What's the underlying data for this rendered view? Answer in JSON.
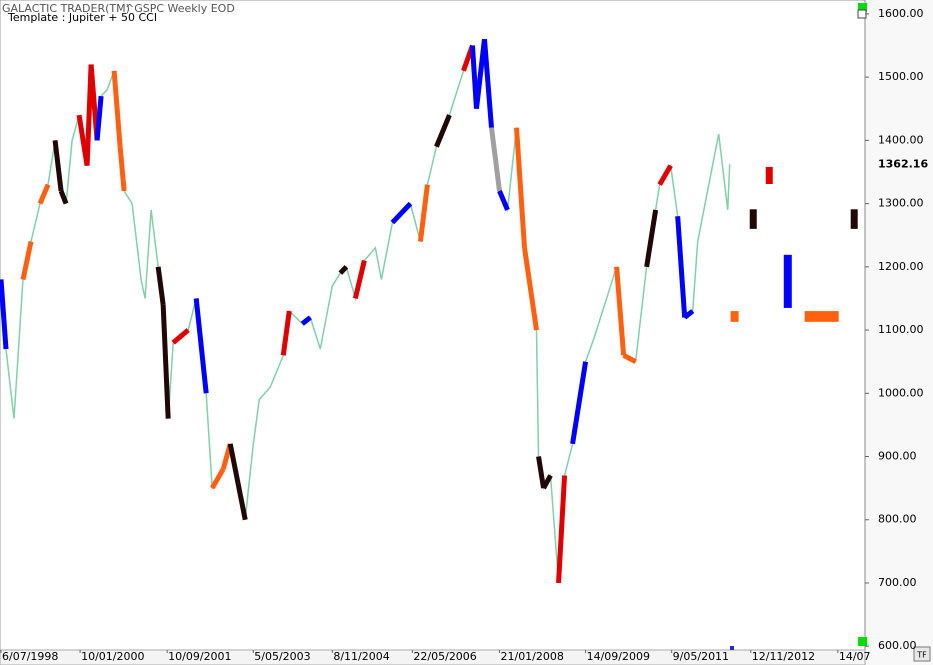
{
  "chart_data": {
    "type": "line",
    "app_title": "GALACTIC TRADER(TM)",
    "symbol": "^GSPC Weekly EOD",
    "template": "Template : Jupiter + 50 CCI",
    "button": "TF",
    "color": "#80d0a8",
    "x": [
      "6/07/1998",
      "10/08/1998",
      "5/10/1998",
      "7/12/1998",
      "1/02/1999",
      "5/04/1999",
      "31/05/1999",
      "19/07/1999",
      "30/08/1999",
      "4/10/1999",
      "15/11/1999",
      "3/01/2000",
      "28/02/2000",
      "27/03/2000",
      "8/05/2000",
      "5/06/2000",
      "17/07/2000",
      "4/09/2000",
      "16/10/2000",
      "13/11/2000",
      "8/01/2001",
      "12/03/2001",
      "9/04/2001",
      "21/05/2001",
      "9/07/2001",
      "13/08/2001",
      "17/09/2001",
      "22/10/2001",
      "4/02/2002",
      "1/04/2002",
      "10/06/2002",
      "22/07/2002",
      "7/10/2002",
      "25/11/2002",
      "10/03/2003",
      "5/05/2003",
      "16/06/2003",
      "1/09/2003",
      "1/12/2003",
      "12/01/2004",
      "12/04/2004",
      "7/06/2004",
      "16/08/2004",
      "8/11/2004",
      "3/01/2005",
      "14/02/2005",
      "18/04/2005",
      "20/06/2005",
      "5/09/2005",
      "17/10/2005",
      "2/01/2006",
      "8/05/2006",
      "17/07/2006",
      "4/09/2006",
      "6/11/2006",
      "5/02/2007",
      "14/05/2007",
      "16/07/2007",
      "13/08/2007",
      "8/10/2007",
      "26/11/2007",
      "21/01/2008",
      "17/03/2008",
      "19/05/2008",
      "14/07/2008",
      "6/10/2008",
      "20/10/2008",
      "24/11/2008",
      "12/01/2009",
      "9/03/2009",
      "20/04/2009",
      "15/06/2009",
      "14/09/2009",
      "16/11/2009",
      "19/04/2010",
      "7/06/2010",
      "30/08/2010",
      "15/11/2010",
      "17/01/2011",
      "14/02/2011",
      "2/05/2011",
      "20/06/2011",
      "8/08/2011",
      "3/10/2011",
      "7/11/2011",
      "2/04/2012",
      "4/06/2012",
      "18/06/2012"
    ],
    "values": [
      1180,
      1070,
      960,
      1180,
      1240,
      1300,
      1330,
      1400,
      1320,
      1300,
      1400,
      1440,
      1360,
      1520,
      1400,
      1470,
      1480,
      1510,
      1390,
      1320,
      1300,
      1180,
      1150,
      1290,
      1200,
      1140,
      960,
      1080,
      1100,
      1150,
      1000,
      850,
      880,
      920,
      800,
      920,
      990,
      1010,
      1060,
      1130,
      1110,
      1120,
      1070,
      1170,
      1190,
      1200,
      1150,
      1210,
      1230,
      1180,
      1270,
      1300,
      1240,
      1330,
      1390,
      1440,
      1510,
      1550,
      1450,
      1560,
      1420,
      1320,
      1290,
      1420,
      1230,
      1100,
      900,
      850,
      870,
      700,
      870,
      920,
      1050,
      1090,
      1200,
      1060,
      1050,
      1200,
      1290,
      1330,
      1360,
      1280,
      1120,
      1130,
      1240,
      1410,
      1290,
      1362.16
    ],
    "point_colors": [
      "#0000ff",
      "#0000ff",
      "#80d0a8",
      "#80d0a8",
      "#ff6010",
      "#80d0a8",
      "#ff6010",
      "#80d0a8",
      "#200808",
      "#200808",
      "#80d0a8",
      "#80d0a8",
      "#e00000",
      "#e00000",
      "#e00000",
      "#0000ff",
      "#80d0a8",
      "#80d0a8",
      "#ff6010",
      "#ff6010",
      "#80d0a8",
      "#80d0a8",
      "#80d0a8",
      "#80d0a8",
      "#80d0a8",
      "#200808",
      "#200808",
      "#80d0a8",
      "#e00000",
      "#80d0a8",
      "#0000ff",
      "#80d0a8",
      "#ff6010",
      "#ff6010",
      "#200808",
      "#80d0a8",
      "#80d0a8",
      "#80d0a8",
      "#80d0a8",
      "#e00000",
      "#80d0a8",
      "#0000ff",
      "#80d0a8",
      "#80d0a8",
      "#80d0a8",
      "#200808",
      "#80d0a8",
      "#e00000",
      "#80d0a8",
      "#80d0a8",
      "#80d0a8",
      "#0000ff",
      "#80d0a8",
      "#ff6010",
      "#80d0a8",
      "#200808",
      "#80d0a8",
      "#e00000",
      "#0000ff",
      "#0000ff",
      "#0000ff",
      "#a0a0a0",
      "#0000ff",
      "#80d0a8",
      "#ff6010",
      "#ff6010",
      "#80d0a8",
      "#200808",
      "#200808",
      "#80d0a8",
      "#e00000",
      "#80d0a8",
      "#0000ff",
      "#80d0a8",
      "#80d0a8",
      "#ff6010",
      "#ff6010",
      "#80d0a8",
      "#200808",
      "#80d0a8",
      "#e00000",
      "#80d0a8",
      "#0000ff",
      "#0000ff",
      "#80d0a8",
      "#80d0a8",
      "#80d0a8",
      "#80d0a8"
    ],
    "last_price": 1362.16,
    "forecast_boxes": [
      {
        "color": "#ff6010",
        "x": [
          "24/06/2012",
          "19/08/2012"
        ],
        "y": [
          1113,
          1130
        ]
      },
      {
        "color": "#200808",
        "x": [
          "5/11/2012",
          "24/12/2012"
        ],
        "y": [
          1260,
          1291
        ]
      },
      {
        "color": "#e00000",
        "x": [
          "25/02/2013",
          "15/04/2013"
        ],
        "y": [
          1331,
          1358
        ]
      },
      {
        "color": "#0000ff",
        "x": [
          "1/07/2013",
          "26/08/2013"
        ],
        "y": [
          1135,
          1219
        ]
      },
      {
        "color": "#ff6010",
        "x": [
          "24/11/2013",
          "20/07/2014"
        ],
        "y": [
          1113,
          1130
        ]
      },
      {
        "color": "#200808",
        "x": [
          "12/10/2014",
          "30/11/2014"
        ],
        "y": [
          1260,
          1291
        ]
      }
    ],
    "xlim": [
      "29/06/1998",
      "20/01/2015"
    ],
    "xticks": [
      "6/07/1998",
      "10/01/2000",
      "10/09/2001",
      "5/05/2003",
      "8/11/2004",
      "22/05/2006",
      "21/01/2008",
      "14/09/2009",
      "9/05/2011",
      "12/11/2012",
      {
        "value": "14/07/2014",
        "label": "14/07"
      }
    ],
    "ylim": [
      594,
      1622
    ],
    "yticks": [
      {
        "value": 600,
        "label": "600.00"
      },
      {
        "value": 700,
        "label": "700.00"
      },
      {
        "value": 800,
        "label": "800.00"
      },
      {
        "value": 900,
        "label": "900.00"
      },
      {
        "value": 1000,
        "label": "1000.00"
      },
      {
        "value": 1100,
        "label": "1100.00"
      },
      {
        "value": 1200,
        "label": "1200.00"
      },
      {
        "value": 1300,
        "label": "1300.00"
      },
      {
        "value": 1400,
        "label": "1400.00"
      },
      {
        "value": 1500,
        "label": "1500.00"
      },
      {
        "value": 1600,
        "label": "1600.00"
      }
    ]
  }
}
